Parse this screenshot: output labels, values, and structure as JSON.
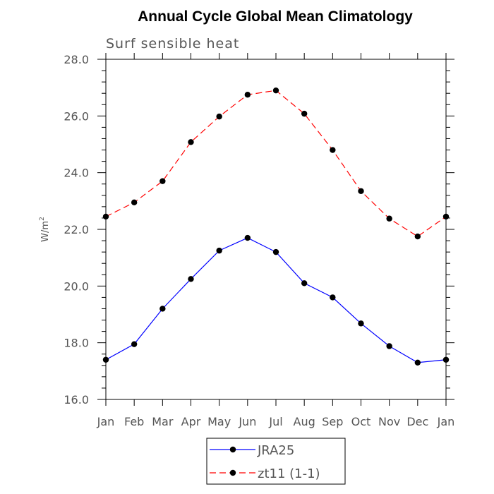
{
  "chart_data": {
    "type": "line",
    "title": "Annual Cycle Global Mean Climatology",
    "subtitle": "Surf sensible heat",
    "ylabel": "W/m",
    "ylabel_sup": "2",
    "xlabel": "",
    "categories": [
      "Jan",
      "Feb",
      "Mar",
      "Apr",
      "May",
      "Jun",
      "Jul",
      "Aug",
      "Sep",
      "Oct",
      "Nov",
      "Dec",
      "Jan"
    ],
    "ylim": [
      16.0,
      28.0
    ],
    "yticks": [
      "16.0",
      "18.0",
      "20.0",
      "22.0",
      "24.0",
      "26.0",
      "28.0"
    ],
    "series": [
      {
        "name": "JRA25",
        "color": "#0000ff",
        "dash": "solid",
        "values": [
          17.4,
          17.95,
          19.2,
          20.25,
          21.25,
          21.7,
          21.2,
          20.1,
          19.6,
          18.68,
          17.88,
          17.3,
          17.4
        ]
      },
      {
        "name": "zt11 (1-1)",
        "color": "#ff0000",
        "dash": "dashed",
        "values": [
          22.45,
          22.95,
          23.7,
          25.08,
          25.98,
          26.75,
          26.9,
          26.08,
          24.8,
          23.35,
          22.38,
          21.75,
          22.45
        ]
      }
    ]
  }
}
